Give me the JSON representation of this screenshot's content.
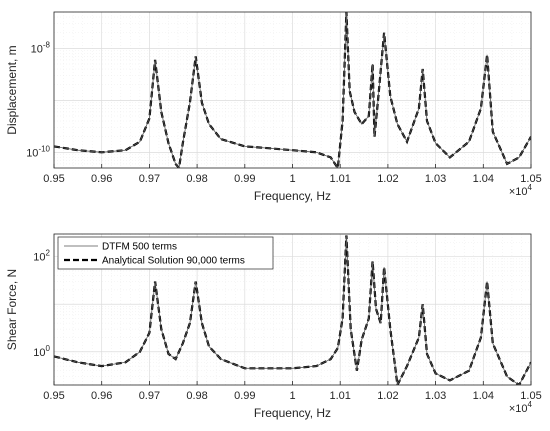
{
  "chart_data": [
    {
      "type": "line",
      "xlabel": "Frequency, Hz",
      "ylabel": "Displacement, m",
      "x_exponent_label": "×10",
      "x_exponent_power": "4",
      "xlim": [
        0.95,
        1.05
      ],
      "ylim": [
        5e-11,
        5e-08
      ],
      "y_scale": "log",
      "grid": true,
      "x_ticks": [
        "0.95",
        "0.96",
        "0.97",
        "0.98",
        "0.99",
        "1",
        "1.01",
        "1.02",
        "1.03",
        "1.04",
        "1.05"
      ],
      "y_ticks": [
        {
          "value": 1e-10,
          "base": "10",
          "exp": "-10"
        },
        {
          "value": 1e-08,
          "base": "10",
          "exp": "-8"
        }
      ],
      "series": [
        {
          "values_note": "both series overlap",
          "x": [
            0.95,
            0.955,
            0.96,
            0.965,
            0.968,
            0.97,
            0.9712,
            0.9725,
            0.974,
            0.9755,
            0.9762,
            0.977,
            0.9785,
            0.9797,
            0.981,
            0.9825,
            0.985,
            0.99,
            0.995,
            1.0,
            1.005,
            1.008,
            1.0095,
            1.0105,
            1.0113,
            1.012,
            1.013,
            1.0145,
            1.016,
            1.0168,
            1.0172,
            1.018,
            1.0192,
            1.0205,
            1.022,
            1.024,
            1.0265,
            1.0273,
            1.0282,
            1.03,
            1.033,
            1.037,
            1.0395,
            1.0408,
            1.042,
            1.045,
            1.0475,
            1.05
          ],
          "y": [
            1.3e-10,
            1.1e-10,
            1e-10,
            1.1e-10,
            1.6e-10,
            4.5e-10,
            6e-09,
            6e-10,
            1.5e-10,
            6e-11,
            4.5e-11,
            1.5e-10,
            9e-10,
            7e-09,
            9e-10,
            3.5e-10,
            1.8e-10,
            1.3e-10,
            1.2e-10,
            1.1e-10,
            1e-10,
            8e-11,
            4.5e-11,
            4e-10,
            5e-08,
            1.5e-09,
            6e-10,
            3.5e-10,
            5e-10,
            5e-09,
            2e-10,
            1.2e-09,
            2e-08,
            1.2e-09,
            3.5e-10,
            1.6e-10,
            7e-10,
            4e-09,
            4e-10,
            1.5e-10,
            8e-11,
            1.6e-10,
            7e-10,
            7.5e-09,
            2.5e-10,
            6e-11,
            8e-11,
            2e-10
          ]
        }
      ]
    },
    {
      "type": "line",
      "xlabel": "Frequency, Hz",
      "ylabel": "Shear Force, N",
      "x_exponent_label": "×10",
      "x_exponent_power": "4",
      "xlim": [
        0.95,
        1.05
      ],
      "ylim": [
        0.2,
        300
      ],
      "y_scale": "log",
      "grid": true,
      "legend_position": "top-left",
      "x_ticks": [
        "0.95",
        "0.96",
        "0.97",
        "0.98",
        "0.99",
        "1",
        "1.01",
        "1.02",
        "1.03",
        "1.04",
        "1.05"
      ],
      "y_ticks": [
        {
          "value": 1,
          "base": "10",
          "exp": "0"
        },
        {
          "value": 100,
          "base": "10",
          "exp": "2"
        }
      ],
      "series": [
        {
          "name": "DTFM 500 terms",
          "x": [
            0.95,
            0.955,
            0.96,
            0.965,
            0.968,
            0.97,
            0.9712,
            0.9725,
            0.974,
            0.9755,
            0.977,
            0.9785,
            0.9797,
            0.981,
            0.9825,
            0.985,
            0.99,
            0.995,
            1.0,
            1.005,
            1.008,
            1.0095,
            1.0105,
            1.0113,
            1.0122,
            1.0135,
            1.0145,
            1.016,
            1.0168,
            1.0175,
            1.0185,
            1.0192,
            1.0205,
            1.0215,
            1.022,
            1.024,
            1.0265,
            1.0273,
            1.0282,
            1.03,
            1.033,
            1.037,
            1.0395,
            1.0408,
            1.042,
            1.045,
            1.0475,
            1.05
          ],
          "y": [
            0.8,
            0.6,
            0.5,
            0.6,
            1.0,
            2.5,
            30,
            3,
            0.9,
            0.7,
            1.5,
            4,
            30,
            4,
            1.3,
            0.7,
            0.45,
            0.45,
            0.45,
            0.5,
            0.7,
            1.2,
            5,
            280,
            3,
            0.4,
            1.8,
            5,
            80,
            8,
            4,
            60,
            3,
            0.5,
            0.2,
            0.5,
            2,
            10,
            0.9,
            0.35,
            0.25,
            0.4,
            2,
            30,
            1.5,
            0.3,
            0.2,
            0.6
          ]
        },
        {
          "name": "Analytical Solution 90,000 terms",
          "same_as": "DTFM 500 terms"
        }
      ]
    }
  ]
}
